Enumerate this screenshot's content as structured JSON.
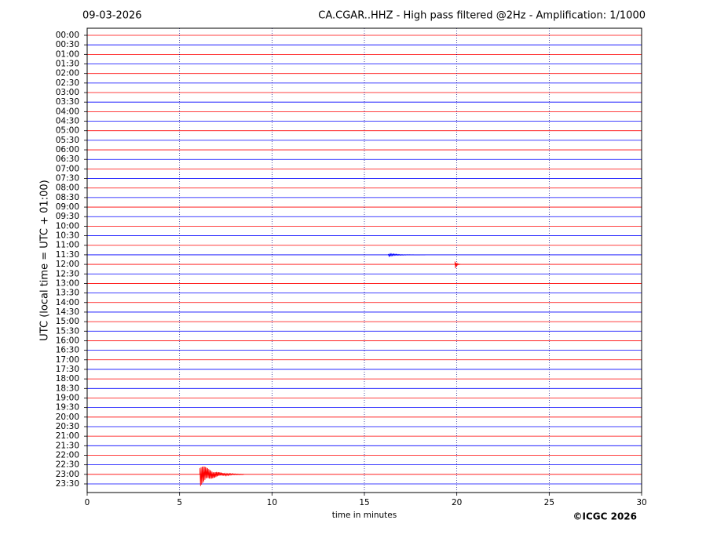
{
  "chart_data": {
    "type": "helicorder",
    "date": "09-03-2026",
    "title": "CA.CGAR..HHZ - High pass filtered @2Hz - Amplification: 1/1000",
    "ylabel": "UTC (local time = UTC + 01:00)",
    "xlabel": "time in minutes",
    "credit": "©ICGC 2026",
    "categories": [
      "00:00",
      "00:30",
      "01:00",
      "01:30",
      "02:00",
      "02:30",
      "03:00",
      "03:30",
      "04:00",
      "04:30",
      "05:00",
      "05:30",
      "06:00",
      "06:30",
      "07:00",
      "07:30",
      "08:00",
      "08:30",
      "09:00",
      "09:30",
      "10:00",
      "10:30",
      "11:00",
      "11:30",
      "12:00",
      "12:30",
      "13:00",
      "13:30",
      "14:00",
      "14:30",
      "15:00",
      "15:30",
      "16:00",
      "16:30",
      "17:00",
      "17:30",
      "18:00",
      "18:30",
      "19:00",
      "19:30",
      "20:00",
      "20:30",
      "21:00",
      "21:30",
      "22:00",
      "22:30",
      "23:00",
      "23:30"
    ],
    "colors": [
      "#ff0000",
      "#0000ff"
    ],
    "xlim": [
      0,
      30
    ],
    "xticks": [
      0,
      5,
      10,
      15,
      20,
      25,
      30
    ],
    "grid": true,
    "events": [
      {
        "hour": 23,
        "minute": 6.1,
        "duration": 2.4,
        "amplitude": 1.3
      },
      {
        "hour": 12,
        "minute": 19.9,
        "duration": 0.3,
        "amplitude": 0.6
      },
      {
        "hour": 11.5,
        "minute": 16.3,
        "duration": 2.0,
        "amplitude": 0.15
      }
    ]
  }
}
